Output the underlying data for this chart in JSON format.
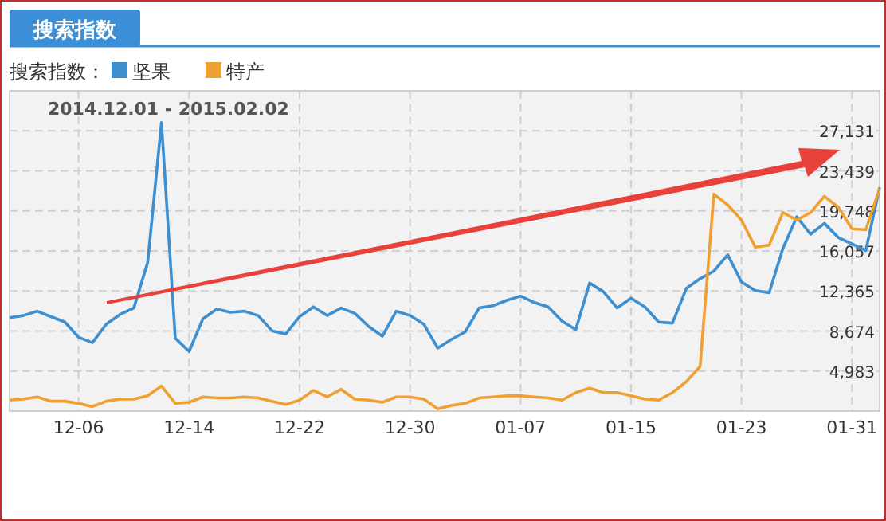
{
  "chart_data": {
    "type": "line",
    "title": "搜索指数",
    "legend_title": "搜索指数：",
    "subtitle": "2014.12.01 - 2015.02.02",
    "x": [
      "2014-12-01",
      "2014-12-02",
      "2014-12-03",
      "2014-12-04",
      "2014-12-05",
      "2014-12-06",
      "2014-12-07",
      "2014-12-08",
      "2014-12-09",
      "2014-12-10",
      "2014-12-11",
      "2014-12-12",
      "2014-12-13",
      "2014-12-14",
      "2014-12-15",
      "2014-12-16",
      "2014-12-17",
      "2014-12-18",
      "2014-12-19",
      "2014-12-20",
      "2014-12-21",
      "2014-12-22",
      "2014-12-23",
      "2014-12-24",
      "2014-12-25",
      "2014-12-26",
      "2014-12-27",
      "2014-12-28",
      "2014-12-29",
      "2014-12-30",
      "2014-12-31",
      "2015-01-01",
      "2015-01-02",
      "2015-01-03",
      "2015-01-04",
      "2015-01-05",
      "2015-01-06",
      "2015-01-07",
      "2015-01-08",
      "2015-01-09",
      "2015-01-10",
      "2015-01-11",
      "2015-01-12",
      "2015-01-13",
      "2015-01-14",
      "2015-01-15",
      "2015-01-16",
      "2015-01-17",
      "2015-01-18",
      "2015-01-19",
      "2015-01-20",
      "2015-01-21",
      "2015-01-22",
      "2015-01-23",
      "2015-01-24",
      "2015-01-25",
      "2015-01-26",
      "2015-01-27",
      "2015-01-28",
      "2015-01-29",
      "2015-01-30",
      "2015-01-31",
      "2015-02-01",
      "2015-02-02"
    ],
    "series": [
      {
        "name": "坚果",
        "color": "#3d8fcf",
        "values": [
          9900,
          10100,
          10500,
          10000,
          9500,
          8100,
          7600,
          9300,
          10200,
          10800,
          15000,
          27900,
          8000,
          6800,
          9800,
          10700,
          10400,
          10500,
          10100,
          8700,
          8400,
          10000,
          10900,
          10100,
          10800,
          10300,
          9100,
          8200,
          10500,
          10100,
          9300,
          7100,
          7900,
          8600,
          10800,
          11000,
          11500,
          11900,
          11300,
          10900,
          9600,
          8800,
          13100,
          12300,
          10800,
          11700,
          10900,
          9500,
          9400,
          12600,
          13500,
          14200,
          15700,
          13200,
          12400,
          12200,
          16300,
          19200,
          17600,
          18600,
          17300,
          16700,
          16100,
          21900
        ]
      },
      {
        "name": "特产",
        "color": "#f0a030",
        "values": [
          2300,
          2400,
          2600,
          2200,
          2200,
          2000,
          1700,
          2200,
          2400,
          2400,
          2700,
          3600,
          2000,
          2100,
          2600,
          2500,
          2500,
          2600,
          2500,
          2200,
          1900,
          2300,
          3200,
          2600,
          3300,
          2400,
          2300,
          2100,
          2600,
          2600,
          2400,
          1500,
          1800,
          2000,
          2500,
          2600,
          2700,
          2700,
          2600,
          2500,
          2300,
          3000,
          3400,
          3000,
          3000,
          2700,
          2400,
          2300,
          3000,
          4000,
          5400,
          21300,
          20300,
          18900,
          16400,
          16600,
          19600,
          18900,
          19600,
          21100,
          20100,
          18100,
          18000,
          21800
        ]
      }
    ],
    "xlim": [
      "2014-12-01",
      "2015-02-02"
    ],
    "xticks": [
      {
        "value": "2014-12-06",
        "label": "12-06"
      },
      {
        "value": "2014-12-14",
        "label": "12-14"
      },
      {
        "value": "2014-12-22",
        "label": "12-22"
      },
      {
        "value": "2014-12-30",
        "label": "12-30"
      },
      {
        "value": "2015-01-07",
        "label": "01-07"
      },
      {
        "value": "2015-01-15",
        "label": "01-15"
      },
      {
        "value": "2015-01-23",
        "label": "01-23"
      },
      {
        "value": "2015-01-31",
        "label": "01-31"
      }
    ],
    "ylim": [
      1292,
      30822
    ],
    "yticks": [
      {
        "value": 1292,
        "label": null
      },
      {
        "value": 4983,
        "label": "4,983"
      },
      {
        "value": 8674,
        "label": "8,674"
      },
      {
        "value": 12365,
        "label": "12,365"
      },
      {
        "value": 16057,
        "label": "16,057"
      },
      {
        "value": 19748,
        "label": "19,748"
      },
      {
        "value": 23439,
        "label": "23,439"
      },
      {
        "value": 27131,
        "label": "27,131"
      },
      {
        "value": 30822,
        "label": null
      }
    ],
    "grid": true,
    "legend": "top left",
    "line_style": "solid"
  }
}
